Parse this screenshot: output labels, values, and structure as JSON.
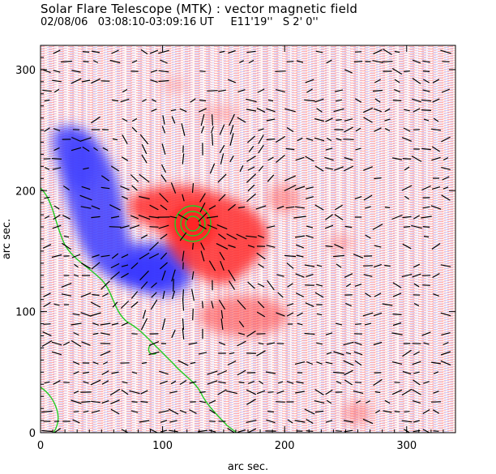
{
  "header": {
    "title": "Solar Flare Telescope (MTK) : vector magnetic field",
    "subtitle": "02/08/06   03:08:10-03:09:16 UT     E11'19''   S 2' 0''"
  },
  "axes": {
    "xlabel": "arc sec.",
    "ylabel": "arc sec.",
    "xlim": [
      0,
      340
    ],
    "ylim": [
      0,
      320
    ],
    "xticks": [
      0,
      100,
      200,
      300
    ],
    "yticks": [
      0,
      100,
      200,
      300
    ]
  },
  "colors": {
    "positive": "#ff4040",
    "negative": "#3c3cff",
    "limb_contour": "#22cc22",
    "vectors": "#000000"
  }
}
